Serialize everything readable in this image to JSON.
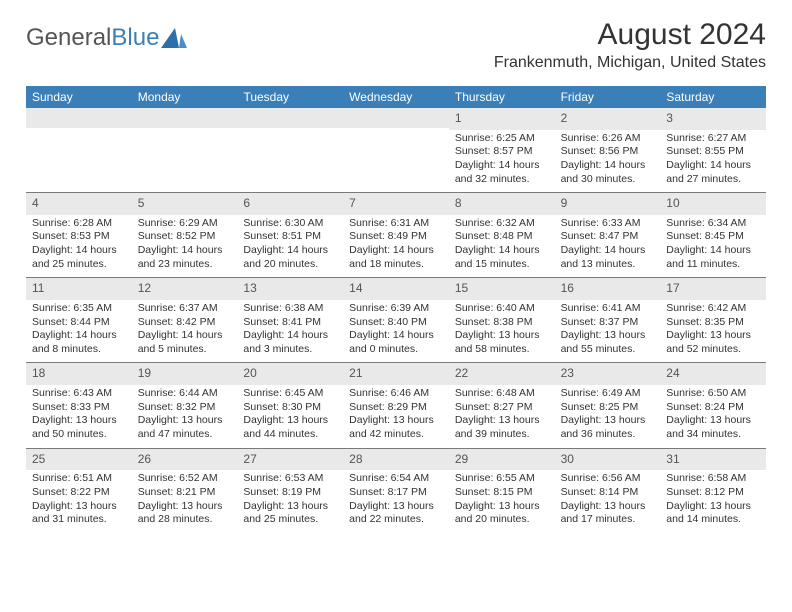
{
  "logo": {
    "text1": "General",
    "text2": "Blue"
  },
  "title": "August 2024",
  "location": "Frankenmuth, Michigan, United States",
  "dayNames": [
    "Sunday",
    "Monday",
    "Tuesday",
    "Wednesday",
    "Thursday",
    "Friday",
    "Saturday"
  ],
  "colors": {
    "headerBg": "#3b7fb8",
    "headerText": "#ffffff",
    "dayNumBg": "#e9e9e9",
    "border": "#7a7a7a",
    "pageBg": "#ffffff",
    "bodyText": "#333333",
    "logoGray": "#555555",
    "logoBlue": "#3b7fb8"
  },
  "weeks": [
    [
      null,
      null,
      null,
      null,
      {
        "n": "1",
        "sr": "Sunrise: 6:25 AM",
        "ss": "Sunset: 8:57 PM",
        "d1": "Daylight: 14 hours",
        "d2": "and 32 minutes."
      },
      {
        "n": "2",
        "sr": "Sunrise: 6:26 AM",
        "ss": "Sunset: 8:56 PM",
        "d1": "Daylight: 14 hours",
        "d2": "and 30 minutes."
      },
      {
        "n": "3",
        "sr": "Sunrise: 6:27 AM",
        "ss": "Sunset: 8:55 PM",
        "d1": "Daylight: 14 hours",
        "d2": "and 27 minutes."
      }
    ],
    [
      {
        "n": "4",
        "sr": "Sunrise: 6:28 AM",
        "ss": "Sunset: 8:53 PM",
        "d1": "Daylight: 14 hours",
        "d2": "and 25 minutes."
      },
      {
        "n": "5",
        "sr": "Sunrise: 6:29 AM",
        "ss": "Sunset: 8:52 PM",
        "d1": "Daylight: 14 hours",
        "d2": "and 23 minutes."
      },
      {
        "n": "6",
        "sr": "Sunrise: 6:30 AM",
        "ss": "Sunset: 8:51 PM",
        "d1": "Daylight: 14 hours",
        "d2": "and 20 minutes."
      },
      {
        "n": "7",
        "sr": "Sunrise: 6:31 AM",
        "ss": "Sunset: 8:49 PM",
        "d1": "Daylight: 14 hours",
        "d2": "and 18 minutes."
      },
      {
        "n": "8",
        "sr": "Sunrise: 6:32 AM",
        "ss": "Sunset: 8:48 PM",
        "d1": "Daylight: 14 hours",
        "d2": "and 15 minutes."
      },
      {
        "n": "9",
        "sr": "Sunrise: 6:33 AM",
        "ss": "Sunset: 8:47 PM",
        "d1": "Daylight: 14 hours",
        "d2": "and 13 minutes."
      },
      {
        "n": "10",
        "sr": "Sunrise: 6:34 AM",
        "ss": "Sunset: 8:45 PM",
        "d1": "Daylight: 14 hours",
        "d2": "and 11 minutes."
      }
    ],
    [
      {
        "n": "11",
        "sr": "Sunrise: 6:35 AM",
        "ss": "Sunset: 8:44 PM",
        "d1": "Daylight: 14 hours",
        "d2": "and 8 minutes."
      },
      {
        "n": "12",
        "sr": "Sunrise: 6:37 AM",
        "ss": "Sunset: 8:42 PM",
        "d1": "Daylight: 14 hours",
        "d2": "and 5 minutes."
      },
      {
        "n": "13",
        "sr": "Sunrise: 6:38 AM",
        "ss": "Sunset: 8:41 PM",
        "d1": "Daylight: 14 hours",
        "d2": "and 3 minutes."
      },
      {
        "n": "14",
        "sr": "Sunrise: 6:39 AM",
        "ss": "Sunset: 8:40 PM",
        "d1": "Daylight: 14 hours",
        "d2": "and 0 minutes."
      },
      {
        "n": "15",
        "sr": "Sunrise: 6:40 AM",
        "ss": "Sunset: 8:38 PM",
        "d1": "Daylight: 13 hours",
        "d2": "and 58 minutes."
      },
      {
        "n": "16",
        "sr": "Sunrise: 6:41 AM",
        "ss": "Sunset: 8:37 PM",
        "d1": "Daylight: 13 hours",
        "d2": "and 55 minutes."
      },
      {
        "n": "17",
        "sr": "Sunrise: 6:42 AM",
        "ss": "Sunset: 8:35 PM",
        "d1": "Daylight: 13 hours",
        "d2": "and 52 minutes."
      }
    ],
    [
      {
        "n": "18",
        "sr": "Sunrise: 6:43 AM",
        "ss": "Sunset: 8:33 PM",
        "d1": "Daylight: 13 hours",
        "d2": "and 50 minutes."
      },
      {
        "n": "19",
        "sr": "Sunrise: 6:44 AM",
        "ss": "Sunset: 8:32 PM",
        "d1": "Daylight: 13 hours",
        "d2": "and 47 minutes."
      },
      {
        "n": "20",
        "sr": "Sunrise: 6:45 AM",
        "ss": "Sunset: 8:30 PM",
        "d1": "Daylight: 13 hours",
        "d2": "and 44 minutes."
      },
      {
        "n": "21",
        "sr": "Sunrise: 6:46 AM",
        "ss": "Sunset: 8:29 PM",
        "d1": "Daylight: 13 hours",
        "d2": "and 42 minutes."
      },
      {
        "n": "22",
        "sr": "Sunrise: 6:48 AM",
        "ss": "Sunset: 8:27 PM",
        "d1": "Daylight: 13 hours",
        "d2": "and 39 minutes."
      },
      {
        "n": "23",
        "sr": "Sunrise: 6:49 AM",
        "ss": "Sunset: 8:25 PM",
        "d1": "Daylight: 13 hours",
        "d2": "and 36 minutes."
      },
      {
        "n": "24",
        "sr": "Sunrise: 6:50 AM",
        "ss": "Sunset: 8:24 PM",
        "d1": "Daylight: 13 hours",
        "d2": "and 34 minutes."
      }
    ],
    [
      {
        "n": "25",
        "sr": "Sunrise: 6:51 AM",
        "ss": "Sunset: 8:22 PM",
        "d1": "Daylight: 13 hours",
        "d2": "and 31 minutes."
      },
      {
        "n": "26",
        "sr": "Sunrise: 6:52 AM",
        "ss": "Sunset: 8:21 PM",
        "d1": "Daylight: 13 hours",
        "d2": "and 28 minutes."
      },
      {
        "n": "27",
        "sr": "Sunrise: 6:53 AM",
        "ss": "Sunset: 8:19 PM",
        "d1": "Daylight: 13 hours",
        "d2": "and 25 minutes."
      },
      {
        "n": "28",
        "sr": "Sunrise: 6:54 AM",
        "ss": "Sunset: 8:17 PM",
        "d1": "Daylight: 13 hours",
        "d2": "and 22 minutes."
      },
      {
        "n": "29",
        "sr": "Sunrise: 6:55 AM",
        "ss": "Sunset: 8:15 PM",
        "d1": "Daylight: 13 hours",
        "d2": "and 20 minutes."
      },
      {
        "n": "30",
        "sr": "Sunrise: 6:56 AM",
        "ss": "Sunset: 8:14 PM",
        "d1": "Daylight: 13 hours",
        "d2": "and 17 minutes."
      },
      {
        "n": "31",
        "sr": "Sunrise: 6:58 AM",
        "ss": "Sunset: 8:12 PM",
        "d1": "Daylight: 13 hours",
        "d2": "and 14 minutes."
      }
    ]
  ]
}
